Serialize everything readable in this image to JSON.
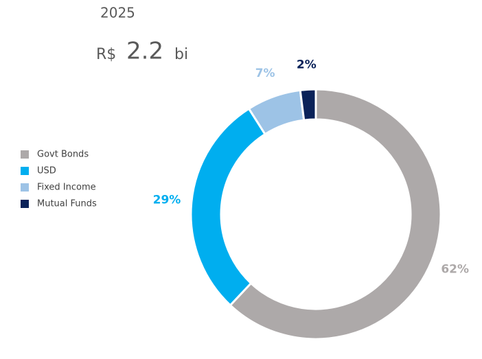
{
  "chart_data": {
    "type": "donut",
    "title": "2025",
    "subtitle_parts": [
      "R$",
      "2.2",
      "bi"
    ],
    "categories": [
      "Govt Bonds",
      "USD",
      "Fixed Income",
      "Mutual Funds"
    ],
    "values": [
      62,
      29,
      7,
      2
    ],
    "value_labels": [
      "62%",
      "29%",
      "7%",
      "2%"
    ],
    "colors": [
      "#ada9a9",
      "#00aeef",
      "#9dc3e6",
      "#0a2259"
    ],
    "legend": "left"
  }
}
